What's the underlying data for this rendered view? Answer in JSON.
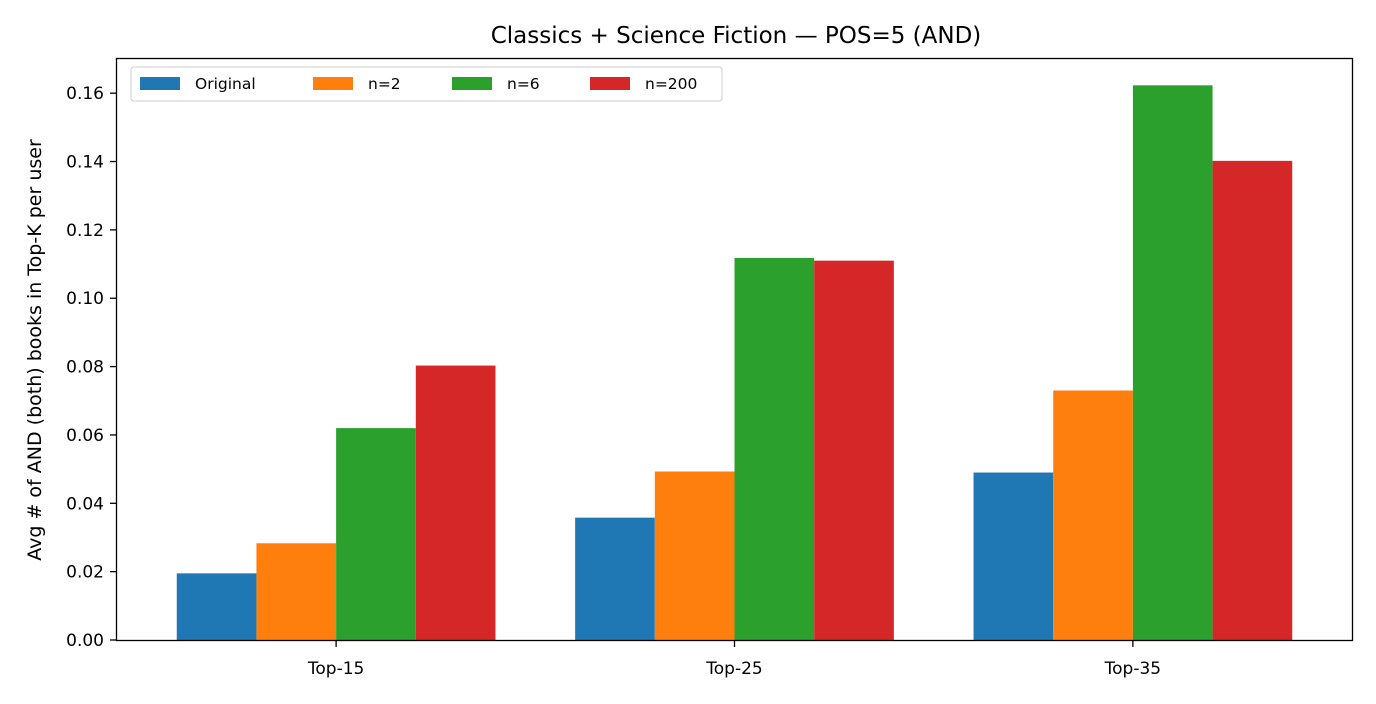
{
  "chart_data": {
    "type": "bar",
    "title": "Classics + Science Fiction — POS=5 (AND)",
    "xlabel": "",
    "ylabel": "Avg # of AND (both) books in Top-K per user",
    "categories": [
      "Top-15",
      "Top-25",
      "Top-35"
    ],
    "ylim": [
      0,
      0.17
    ],
    "yticks": [
      "0.00",
      "0.02",
      "0.04",
      "0.06",
      "0.08",
      "0.10",
      "0.12",
      "0.14",
      "0.16"
    ],
    "grid": false,
    "legend_position": "top-left",
    "series": [
      {
        "name": "Original",
        "color": "#1f77b4",
        "values": [
          0.0195,
          0.0358,
          0.049
        ]
      },
      {
        "name": "n=2",
        "color": "#ff7f0e",
        "values": [
          0.0283,
          0.0493,
          0.073
        ]
      },
      {
        "name": "n=6",
        "color": "#2ca02c",
        "values": [
          0.062,
          0.1118,
          0.1623
        ]
      },
      {
        "name": "n=200",
        "color": "#d62728",
        "values": [
          0.0803,
          0.111,
          0.1402
        ]
      }
    ]
  }
}
